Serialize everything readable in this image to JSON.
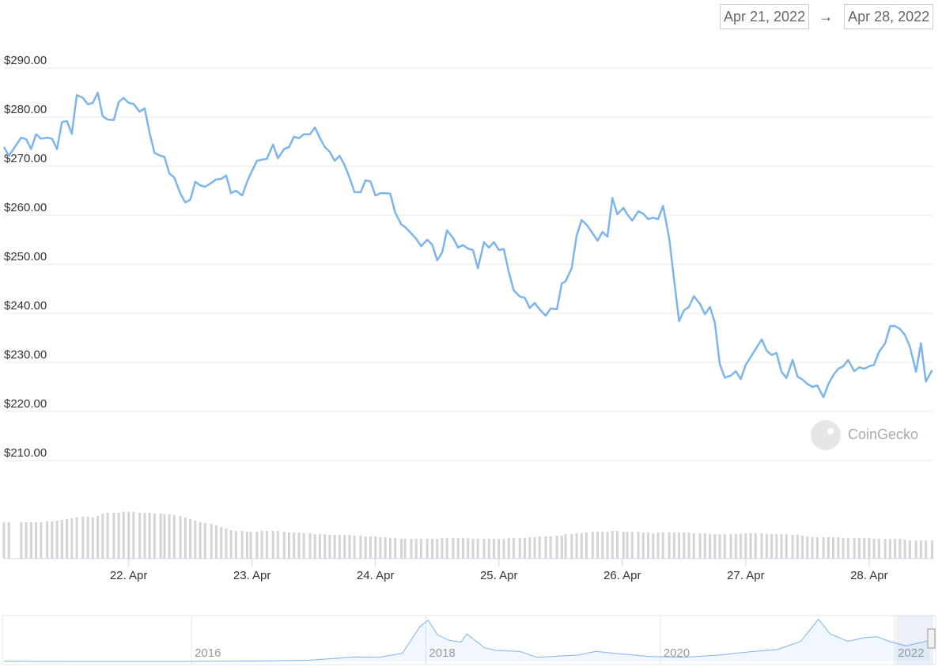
{
  "range": {
    "from": "Apr 21, 2022",
    "arrow": "→",
    "to": "Apr 28, 2022"
  },
  "watermark": "CoinGecko",
  "chart_data": [
    {
      "type": "line",
      "x": [
        20.99,
        21.03,
        21.13,
        21.17,
        21.21,
        21.25,
        21.29,
        21.34,
        21.38,
        21.42,
        21.46,
        21.5,
        21.54,
        21.58,
        21.63,
        21.67,
        21.71,
        21.75,
        21.79,
        21.83,
        21.88,
        21.92,
        21.96,
        22.0,
        22.04,
        22.09,
        22.13,
        22.17,
        22.21,
        22.26,
        22.29,
        22.33,
        22.37,
        22.42,
        22.46,
        22.5,
        22.54,
        22.58,
        22.62,
        22.67,
        22.71,
        22.75,
        22.79,
        22.83,
        22.87,
        22.92,
        22.96,
        22.99,
        23.04,
        23.08,
        23.12,
        23.17,
        23.21,
        23.26,
        23.3,
        23.34,
        23.38,
        23.42,
        23.47,
        23.51,
        23.55,
        23.59,
        23.63,
        23.67,
        23.71,
        23.75,
        23.79,
        23.83,
        23.88,
        23.92,
        23.96,
        24.0,
        24.04,
        24.08,
        24.12,
        24.16,
        24.21,
        24.24,
        24.29,
        24.33,
        24.37,
        24.42,
        24.46,
        24.5,
        24.54,
        24.58,
        24.63,
        24.67,
        24.71,
        24.75,
        24.79,
        24.83,
        24.88,
        24.92,
        24.96,
        25.0,
        25.04,
        25.08,
        25.12,
        25.17,
        25.21,
        25.25,
        25.29,
        25.33,
        25.38,
        25.42,
        25.47,
        25.51,
        25.54,
        25.59,
        25.63,
        25.67,
        25.71,
        25.76,
        25.8,
        25.84,
        25.88,
        25.92,
        25.96,
        26.01,
        26.04,
        26.08,
        26.13,
        26.17,
        26.21,
        26.25,
        26.29,
        26.33,
        26.38,
        26.42,
        26.46,
        26.5,
        26.54,
        26.58,
        26.63,
        26.67,
        26.71,
        26.75,
        26.79,
        26.83,
        26.88,
        26.92,
        26.96,
        27.0,
        27.04,
        27.08,
        27.13,
        27.17,
        27.21,
        27.25,
        27.29,
        27.33,
        27.38,
        27.42,
        27.46,
        27.5,
        27.54,
        27.58,
        27.63,
        27.67,
        27.71,
        27.75,
        27.79,
        27.83,
        27.88,
        27.92,
        27.96,
        28.0,
        28.04,
        28.08,
        28.13,
        28.17,
        28.21,
        28.25,
        28.29,
        28.33,
        28.38,
        28.42,
        28.46,
        28.51
      ],
      "series": [
        {
          "color": "#7cb5ec",
          "values": [
            273.9,
            272.1,
            275.8,
            275.5,
            273.5,
            276.5,
            275.6,
            275.8,
            275.6,
            273.5,
            279.0,
            279.2,
            276.6,
            284.5,
            283.9,
            282.6,
            282.9,
            285.0,
            280.2,
            279.5,
            279.4,
            283.1,
            283.9,
            282.9,
            282.7,
            281.1,
            281.8,
            276.8,
            272.7,
            272.1,
            271.9,
            268.5,
            267.7,
            264.4,
            262.6,
            263.2,
            266.8,
            266.1,
            265.8,
            266.6,
            267.3,
            267.4,
            268.1,
            264.5,
            265.0,
            264.0,
            266.8,
            268.5,
            271.1,
            271.3,
            271.5,
            274.4,
            271.6,
            273.5,
            273.9,
            276.0,
            275.7,
            276.5,
            276.5,
            277.9,
            275.7,
            273.9,
            272.9,
            271.1,
            272.1,
            270.2,
            267.7,
            264.7,
            264.7,
            267.1,
            266.9,
            264.0,
            264.5,
            264.5,
            264.4,
            260.5,
            258.1,
            257.6,
            256.3,
            255.2,
            253.7,
            255.0,
            254.0,
            250.8,
            252.4,
            256.9,
            255.3,
            253.4,
            253.9,
            253.2,
            252.9,
            249.2,
            254.5,
            253.4,
            254.5,
            252.9,
            253.1,
            248.5,
            244.7,
            243.4,
            243.2,
            241.1,
            242.1,
            240.8,
            239.5,
            241.0,
            240.8,
            246.1,
            246.5,
            249.2,
            255.8,
            259.0,
            258.1,
            256.3,
            254.8,
            256.6,
            255.6,
            263.5,
            260.2,
            261.5,
            260.2,
            258.9,
            260.8,
            260.3,
            259.2,
            259.5,
            259.2,
            261.9,
            255.3,
            246.8,
            238.4,
            240.6,
            241.3,
            243.5,
            241.9,
            239.8,
            241.3,
            238.1,
            229.7,
            226.9,
            227.3,
            228.2,
            226.6,
            229.5,
            231.1,
            232.7,
            234.7,
            232.4,
            231.5,
            231.9,
            228.1,
            226.8,
            230.5,
            227.1,
            226.5,
            225.6,
            225.0,
            225.3,
            222.9,
            225.6,
            227.4,
            228.7,
            229.2,
            230.5,
            228.2,
            229.0,
            228.7,
            229.2,
            229.5,
            232.1,
            233.9,
            237.4,
            237.4,
            236.8,
            235.6,
            233.2,
            228.1,
            233.9,
            226.1,
            228.4
          ]
        }
      ],
      "volume": {
        "color": "#d4d4d4",
        "values": [
          46,
          46,
          46,
          46,
          46,
          46,
          46,
          47,
          47,
          48,
          49,
          50,
          51,
          52,
          53,
          53,
          52,
          54,
          57,
          58,
          58,
          58,
          59,
          59,
          59,
          58,
          58,
          58,
          57,
          57,
          56,
          56,
          55,
          54,
          52,
          50,
          48,
          46,
          45,
          44,
          42,
          40,
          38,
          36,
          35,
          35,
          34,
          34,
          34,
          35,
          35,
          35,
          35,
          34,
          33,
          33,
          33,
          32,
          32,
          31,
          31,
          31,
          30,
          30,
          30,
          30,
          30,
          29,
          29,
          28,
          28,
          28,
          27,
          27,
          26,
          26,
          25,
          25,
          25,
          25,
          25,
          25,
          25,
          25,
          26,
          26,
          26,
          26,
          26,
          26,
          25,
          25,
          25,
          25,
          25,
          25,
          25,
          26,
          26,
          26,
          26,
          27,
          27,
          28,
          28,
          28,
          29,
          29,
          31,
          31,
          32,
          32,
          33,
          34,
          34,
          34,
          34,
          35,
          35,
          34,
          34,
          34,
          34,
          33,
          33,
          32,
          33,
          33,
          33,
          33,
          33,
          33,
          33,
          32,
          32,
          32,
          31,
          31,
          31,
          31,
          31,
          31,
          31,
          32,
          32,
          32,
          32,
          31,
          31,
          31,
          31,
          31,
          30,
          30,
          29,
          28,
          27,
          27,
          27,
          27,
          27,
          27,
          26,
          26,
          26,
          26,
          26,
          26,
          25,
          25,
          25,
          25,
          25,
          25,
          24,
          23,
          23,
          23,
          23,
          23
        ]
      },
      "xlim": [
        20.99,
        28.52
      ],
      "xticks": [
        {
          "value": 22,
          "label": "22. Apr"
        },
        {
          "value": 23,
          "label": "23. Apr"
        },
        {
          "value": 24,
          "label": "24. Apr"
        },
        {
          "value": 25,
          "label": "25. Apr"
        },
        {
          "value": 26,
          "label": "26. Apr"
        },
        {
          "value": 27,
          "label": "27. Apr"
        },
        {
          "value": 28,
          "label": "28. Apr"
        }
      ],
      "ylim": [
        210,
        290
      ],
      "yticks": [
        {
          "value": 210,
          "label": "$210.00"
        },
        {
          "value": 220,
          "label": "$220.00"
        },
        {
          "value": 230,
          "label": "$230.00"
        },
        {
          "value": 240,
          "label": "$240.00"
        },
        {
          "value": 250,
          "label": "$250.00"
        },
        {
          "value": 260,
          "label": "$260.00"
        },
        {
          "value": 270,
          "label": "$270.00"
        },
        {
          "value": 280,
          "label": "$280.00"
        },
        {
          "value": 290,
          "label": "$290.00"
        }
      ],
      "grid": true
    },
    {
      "type": "area",
      "x": [
        2014.4,
        2015.0,
        2016.0,
        2016.7,
        2017.0,
        2017.4,
        2017.6,
        2017.8,
        2017.95,
        2018.02,
        2018.1,
        2018.2,
        2018.3,
        2018.35,
        2018.5,
        2018.6,
        2018.8,
        2018.95,
        2019.3,
        2019.45,
        2019.6,
        2019.9,
        2020.2,
        2020.5,
        2020.8,
        2021.0,
        2021.2,
        2021.35,
        2021.45,
        2021.6,
        2021.75,
        2021.85,
        2021.95,
        2022.1,
        2022.3
      ],
      "series": [
        {
          "color": "#7cb5ec",
          "values": [
            2,
            0.5,
            0.5,
            8,
            13,
            50,
            45,
            90,
            380,
            450,
            290,
            230,
            210,
            300,
            150,
            120,
            110,
            45,
            70,
            110,
            90,
            55,
            45,
            70,
            110,
            130,
            220,
            460,
            300,
            220,
            260,
            270,
            220,
            170,
            230
          ]
        }
      ],
      "xlim": [
        2014.4,
        2022.33
      ],
      "xticks": [
        2016,
        2018,
        2020,
        2022
      ],
      "ylim": [
        0,
        500
      ]
    }
  ]
}
